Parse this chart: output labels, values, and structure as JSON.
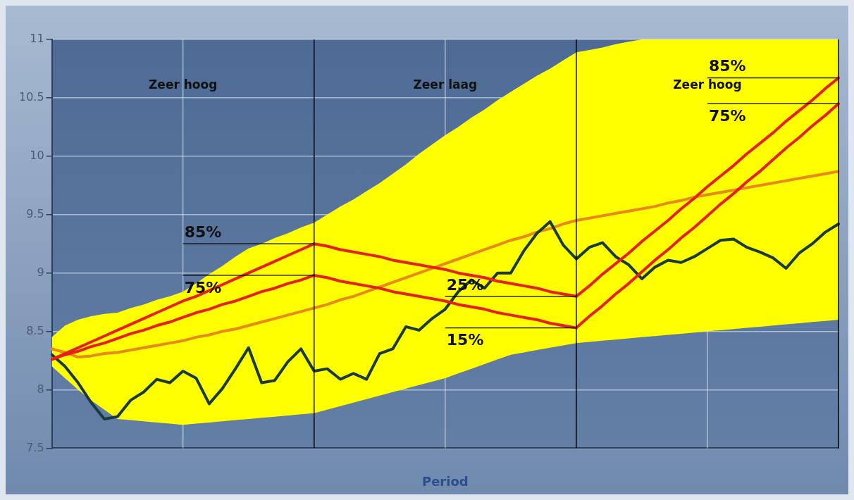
{
  "chart_data": {
    "type": "line",
    "xlabel": "Period",
    "categories": [
      null,
      null,
      null,
      null,
      null,
      null,
      null,
      null,
      null,
      null,
      null,
      null,
      null,
      null,
      null,
      null,
      null,
      null,
      null,
      null,
      null,
      null,
      null,
      null,
      null,
      null,
      null,
      null,
      null,
      null,
      null,
      null,
      null,
      null,
      null,
      null,
      null,
      null,
      null,
      null,
      null,
      null,
      null,
      null,
      null,
      null,
      null,
      null,
      null,
      null,
      null,
      null,
      null,
      null,
      null,
      null,
      null,
      null,
      null,
      null,
      null
    ],
    "ylim": [
      7.5,
      11
    ],
    "yticks": [
      7.5,
      8,
      8.5,
      9,
      9.5,
      10,
      10.5,
      11
    ],
    "tick_labels": "y",
    "grid": true,
    "legend": false,
    "marker": "none",
    "line_style": "solid",
    "annotations": [
      "Zeer hoog",
      "Zeer laag",
      "Zeer hoog",
      "85%",
      "75%",
      "25%",
      "15%",
      "85%",
      "75%"
    ],
    "series": [
      {
        "type": "line",
        "color": "#e88a1a",
        "values": [
          8.35,
          8.32,
          8.28,
          8.29,
          8.31,
          8.32,
          8.34,
          8.36,
          8.38,
          8.4,
          8.42,
          8.45,
          8.47,
          8.5,
          8.52,
          8.55,
          8.58,
          8.61,
          8.64,
          8.67,
          8.7,
          8.73,
          8.77,
          8.8,
          8.84,
          8.88,
          8.92,
          8.96,
          9.0,
          9.04,
          9.08,
          9.12,
          9.16,
          9.2,
          9.24,
          9.28,
          9.31,
          9.35,
          9.38,
          9.42,
          9.45,
          9.47,
          9.49,
          9.51,
          9.53,
          9.55,
          9.57,
          9.6,
          9.62,
          9.65,
          9.67,
          9.69,
          9.71,
          9.73,
          9.75,
          9.77,
          9.79,
          9.81,
          9.83,
          9.85,
          9.87
        ],
        "lower": [
          8.2,
          8.1,
          8.0,
          7.91,
          7.83,
          7.75,
          7.74,
          7.73,
          7.72,
          7.71,
          7.7,
          7.71,
          7.72,
          7.73,
          7.74,
          7.75,
          7.76,
          7.77,
          7.78,
          7.79,
          7.8,
          7.83,
          7.86,
          7.89,
          7.92,
          7.95,
          7.98,
          8.01,
          8.04,
          8.07,
          8.1,
          8.14,
          8.18,
          8.22,
          8.26,
          8.3,
          8.32,
          8.34,
          8.36,
          8.38,
          8.4,
          8.41,
          8.42,
          8.43,
          8.44,
          8.45,
          8.46,
          8.47,
          8.48,
          8.49,
          8.5,
          8.51,
          8.52,
          8.53,
          8.54,
          8.55,
          8.56,
          8.57,
          8.58,
          8.59,
          8.6
        ],
        "upper": [
          8.45,
          8.55,
          8.6,
          8.63,
          8.65,
          8.66,
          8.7,
          8.73,
          8.77,
          8.8,
          8.84,
          8.91,
          8.99,
          9.06,
          9.14,
          9.21,
          9.25,
          9.3,
          9.34,
          9.39,
          9.43,
          9.5,
          9.57,
          9.63,
          9.7,
          9.77,
          9.85,
          9.93,
          10.02,
          10.1,
          10.18,
          10.25,
          10.33,
          10.4,
          10.48,
          10.55,
          10.62,
          10.69,
          10.75,
          10.82,
          10.89,
          10.91,
          10.93,
          10.96,
          10.98,
          11,
          11,
          11,
          11,
          11,
          11,
          11,
          11,
          11,
          11,
          11,
          11,
          11,
          11,
          11,
          11
        ]
      },
      {
        "type": "line",
        "color": "#1b3a3e",
        "values": [
          8.3,
          8.2,
          8.06,
          7.89,
          7.75,
          7.77,
          7.91,
          7.98,
          8.09,
          8.06,
          8.16,
          8.1,
          7.88,
          8.01,
          8.18,
          8.36,
          8.06,
          8.08,
          8.24,
          8.35,
          8.16,
          8.18,
          8.09,
          8.14,
          8.09,
          8.31,
          8.35,
          8.54,
          8.51,
          8.61,
          8.69,
          8.84,
          8.94,
          8.87,
          9.0,
          9.0,
          9.19,
          9.34,
          9.44,
          9.24,
          9.12,
          9.22,
          9.26,
          9.14,
          9.07,
          8.95,
          9.05,
          9.11,
          9.09,
          9.14,
          9.21,
          9.28,
          9.29,
          9.22,
          9.18,
          9.13,
          9.04,
          9.17,
          9.25,
          9.35,
          9.42
        ]
      },
      {
        "type": "line",
        "color": "#e8201c",
        "values": [
          8.26,
          8.31,
          8.36,
          8.41,
          8.46,
          8.51,
          8.56,
          8.61,
          8.66,
          8.71,
          8.76,
          8.8,
          8.85,
          8.9,
          8.95,
          9.0,
          9.05,
          9.1,
          9.15,
          9.2,
          9.25,
          9.23,
          9.2,
          9.18,
          9.16,
          9.14,
          9.11,
          9.09,
          9.07,
          9.05,
          9.03,
          9.0,
          8.98,
          8.96,
          8.93,
          8.91,
          8.89,
          8.87,
          8.84,
          8.82,
          8.8,
          8.89,
          8.99,
          9.08,
          9.17,
          9.27,
          9.36,
          9.45,
          9.55,
          9.64,
          9.74,
          9.83,
          9.92,
          10.02,
          10.11,
          10.2,
          10.3,
          10.39,
          10.48,
          10.58,
          10.67
        ]
      },
      {
        "type": "line",
        "color": "#e8201c",
        "values": [
          8.26,
          8.3,
          8.33,
          8.37,
          8.4,
          8.44,
          8.48,
          8.51,
          8.55,
          8.58,
          8.62,
          8.66,
          8.69,
          8.73,
          8.76,
          8.8,
          8.84,
          8.87,
          8.91,
          8.94,
          8.98,
          8.96,
          8.93,
          8.91,
          8.89,
          8.87,
          8.84,
          8.82,
          8.8,
          8.78,
          8.76,
          8.73,
          8.71,
          8.69,
          8.66,
          8.64,
          8.62,
          8.6,
          8.57,
          8.55,
          8.53,
          8.63,
          8.72,
          8.82,
          8.91,
          9.01,
          9.11,
          9.2,
          9.3,
          9.39,
          9.49,
          9.59,
          9.68,
          9.78,
          9.87,
          9.97,
          10.07,
          10.16,
          10.26,
          10.35,
          10.45
        ]
      }
    ]
  }
}
